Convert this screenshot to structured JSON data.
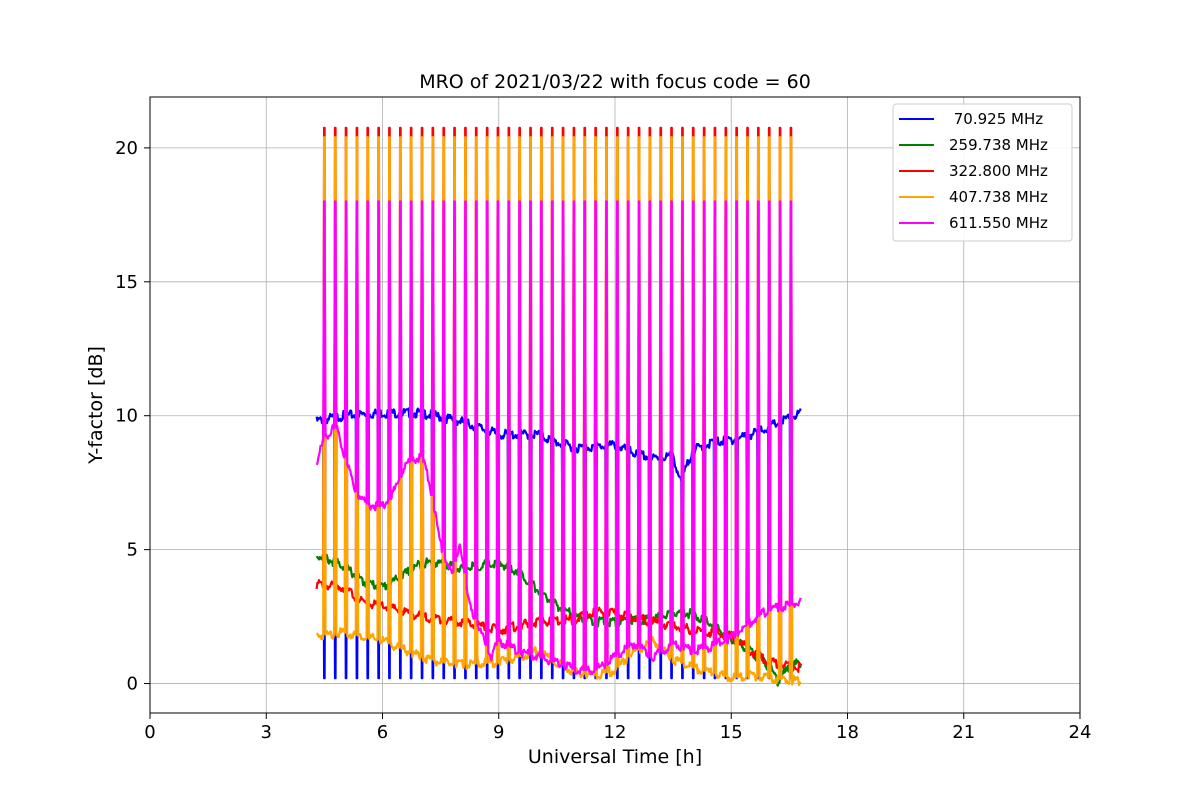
{
  "chart_data": {
    "type": "line",
    "title": "MRO of 2021/03/22 with focus code = 60",
    "xlabel": "Universal Time [h]",
    "ylabel": "Y-factor [dB]",
    "xlim": [
      0,
      24
    ],
    "ylim": [
      -1.1,
      21.9
    ],
    "xticks": [
      0,
      3,
      6,
      9,
      12,
      15,
      18,
      21,
      24
    ],
    "yticks": [
      0,
      5,
      10,
      15,
      20
    ],
    "grid": true,
    "legend_position": "top-right",
    "pulse_times_h": [
      4.5,
      4.78,
      5.06,
      5.34,
      5.62,
      5.9,
      6.18,
      6.46,
      6.74,
      7.02,
      7.3,
      7.58,
      7.86,
      8.14,
      8.42,
      8.7,
      8.98,
      9.26,
      9.54,
      9.82,
      10.1,
      10.38,
      10.66,
      10.94,
      11.22,
      11.5,
      11.78,
      12.06,
      12.34,
      12.62,
      12.9,
      13.18,
      13.46,
      13.74,
      14.02,
      14.3,
      14.58,
      14.86,
      15.14,
      15.42,
      15.7,
      15.98,
      16.26,
      16.54
    ],
    "series": [
      {
        "name": " 70.925 MHz",
        "color": "#0000ff",
        "pulse_direction": "down",
        "pulse_level": 0.2,
        "baseline": [
          [
            4.3,
            9.8
          ],
          [
            5.0,
            10.0
          ],
          [
            6.0,
            10.1
          ],
          [
            7.0,
            10.1
          ],
          [
            8.0,
            9.8
          ],
          [
            9.0,
            9.3
          ],
          [
            10.0,
            9.3
          ],
          [
            10.5,
            9.0
          ],
          [
            11.0,
            8.8
          ],
          [
            12.0,
            8.9
          ],
          [
            12.5,
            8.6
          ],
          [
            13.0,
            8.4
          ],
          [
            13.5,
            8.5
          ],
          [
            13.7,
            7.5
          ],
          [
            14.0,
            8.7
          ],
          [
            14.5,
            9.0
          ],
          [
            15.0,
            9.1
          ],
          [
            15.5,
            9.3
          ],
          [
            16.0,
            9.6
          ],
          [
            16.8,
            10.1
          ]
        ]
      },
      {
        "name": "259.738 MHz",
        "color": "#008000",
        "pulse_direction": "none",
        "baseline": [
          [
            4.3,
            4.8
          ],
          [
            5.0,
            4.4
          ],
          [
            5.5,
            3.8
          ],
          [
            6.0,
            3.6
          ],
          [
            6.5,
            4.0
          ],
          [
            7.0,
            4.5
          ],
          [
            7.5,
            4.5
          ],
          [
            8.0,
            4.3
          ],
          [
            8.5,
            4.4
          ],
          [
            9.0,
            4.5
          ],
          [
            9.5,
            4.2
          ],
          [
            10.0,
            3.5
          ],
          [
            10.5,
            2.9
          ],
          [
            11.0,
            2.5
          ],
          [
            11.5,
            2.3
          ],
          [
            12.0,
            2.3
          ],
          [
            13.0,
            2.4
          ],
          [
            13.5,
            2.7
          ],
          [
            14.0,
            2.6
          ],
          [
            14.5,
            2.2
          ],
          [
            15.0,
            1.7
          ],
          [
            15.5,
            1.2
          ],
          [
            16.0,
            0.6
          ],
          [
            16.2,
            0.1
          ],
          [
            16.5,
            0.6
          ],
          [
            16.8,
            0.8
          ]
        ]
      },
      {
        "name": "322.800 MHz",
        "color": "#ff0000",
        "pulse_direction": "up",
        "pulse_level": 20.75,
        "baseline": [
          [
            4.3,
            3.7
          ],
          [
            5.0,
            3.6
          ],
          [
            5.5,
            3.0
          ],
          [
            6.0,
            2.9
          ],
          [
            7.0,
            2.5
          ],
          [
            8.0,
            2.3
          ],
          [
            9.0,
            2.0
          ],
          [
            10.0,
            2.3
          ],
          [
            11.0,
            2.4
          ],
          [
            11.5,
            2.7
          ],
          [
            12.0,
            2.6
          ],
          [
            13.0,
            2.3
          ],
          [
            14.0,
            2.0
          ],
          [
            15.0,
            1.8
          ],
          [
            15.5,
            1.2
          ],
          [
            16.0,
            0.8
          ],
          [
            16.8,
            0.6
          ]
        ]
      },
      {
        "name": "407.738 MHz",
        "color": "#ffa500",
        "pulse_direction": "up",
        "pulse_level": 20.4,
        "baseline": [
          [
            4.3,
            1.8
          ],
          [
            5.0,
            1.9
          ],
          [
            6.0,
            1.6
          ],
          [
            6.5,
            1.3
          ],
          [
            7.0,
            1.0
          ],
          [
            7.5,
            0.8
          ],
          [
            8.0,
            0.7
          ],
          [
            9.0,
            0.8
          ],
          [
            9.5,
            1.0
          ],
          [
            10.0,
            1.2
          ],
          [
            10.5,
            0.8
          ],
          [
            11.0,
            0.4
          ],
          [
            11.5,
            0.3
          ],
          [
            12.0,
            0.5
          ],
          [
            12.5,
            1.2
          ],
          [
            13.0,
            1.6
          ],
          [
            13.5,
            0.9
          ],
          [
            14.0,
            0.6
          ],
          [
            14.5,
            0.4
          ],
          [
            15.0,
            0.2
          ],
          [
            15.5,
            0.3
          ],
          [
            16.0,
            0.2
          ],
          [
            16.8,
            0.1
          ]
        ]
      },
      {
        "name": "611.550 MHz",
        "color": "#ff00ff",
        "pulse_direction": "up",
        "pulse_level": 18.0,
        "baseline": [
          [
            4.3,
            8.2
          ],
          [
            4.5,
            9.2
          ],
          [
            4.8,
            9.6
          ],
          [
            5.0,
            8.6
          ],
          [
            5.3,
            7.2
          ],
          [
            5.6,
            6.7
          ],
          [
            6.0,
            6.6
          ],
          [
            6.3,
            7.2
          ],
          [
            6.6,
            8.2
          ],
          [
            7.0,
            8.5
          ],
          [
            7.2,
            7.6
          ],
          [
            7.5,
            5.2
          ],
          [
            7.8,
            4.0
          ],
          [
            8.0,
            5.3
          ],
          [
            8.2,
            3.2
          ],
          [
            8.5,
            2.0
          ],
          [
            8.8,
            1.0
          ],
          [
            9.0,
            1.6
          ],
          [
            9.5,
            1.2
          ],
          [
            10.0,
            1.0
          ],
          [
            10.5,
            0.8
          ],
          [
            11.0,
            0.5
          ],
          [
            11.5,
            0.5
          ],
          [
            12.0,
            1.0
          ],
          [
            12.5,
            1.5
          ],
          [
            13.0,
            1.0
          ],
          [
            13.5,
            1.5
          ],
          [
            14.0,
            1.2
          ],
          [
            14.5,
            1.4
          ],
          [
            15.0,
            1.7
          ],
          [
            15.5,
            2.3
          ],
          [
            16.0,
            2.8
          ],
          [
            16.5,
            2.9
          ],
          [
            16.8,
            3.1
          ]
        ]
      }
    ]
  }
}
